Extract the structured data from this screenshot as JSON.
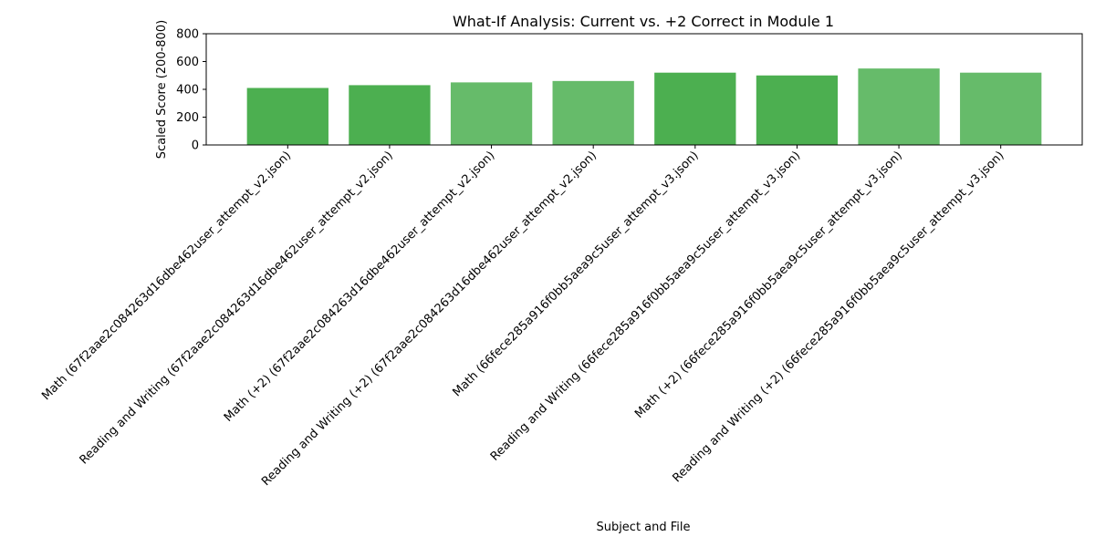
{
  "chart_data": {
    "type": "bar",
    "title": "What-If Analysis: Current vs. +2 Correct in Module 1",
    "xlabel": "Subject and File",
    "ylabel": "Scaled Score (200-800)",
    "ylim": [
      0,
      800
    ],
    "yticks": [
      0,
      200,
      400,
      600,
      800
    ],
    "grid": false,
    "categories": [
      "Math (67f2aae2c084263d16dbe462user_attempt_v2.json)",
      "Reading and Writing (67f2aae2c084263d16dbe462user_attempt_v2.json)",
      "Math (+2) (67f2aae2c084263d16dbe462user_attempt_v2.json)",
      "Reading and Writing (+2) (67f2aae2c084263d16dbe462user_attempt_v2.json)",
      "Math (66fece285a916f0bb5aea9c5user_attempt_v3.json)",
      "Reading and Writing (66fece285a916f0bb5aea9c5user_attempt_v3.json)",
      "Math (+2) (66fece285a916f0bb5aea9c5user_attempt_v3.json)",
      "Reading and Writing (+2) (66fece285a916f0bb5aea9c5user_attempt_v3.json)"
    ],
    "values": [
      410,
      430,
      450,
      460,
      520,
      500,
      550,
      520
    ],
    "bar_colors": [
      "#4caf50",
      "#4caf50",
      "#66bb6a",
      "#66bb6a",
      "#4caf50",
      "#4caf50",
      "#66bb6a",
      "#66bb6a"
    ]
  }
}
